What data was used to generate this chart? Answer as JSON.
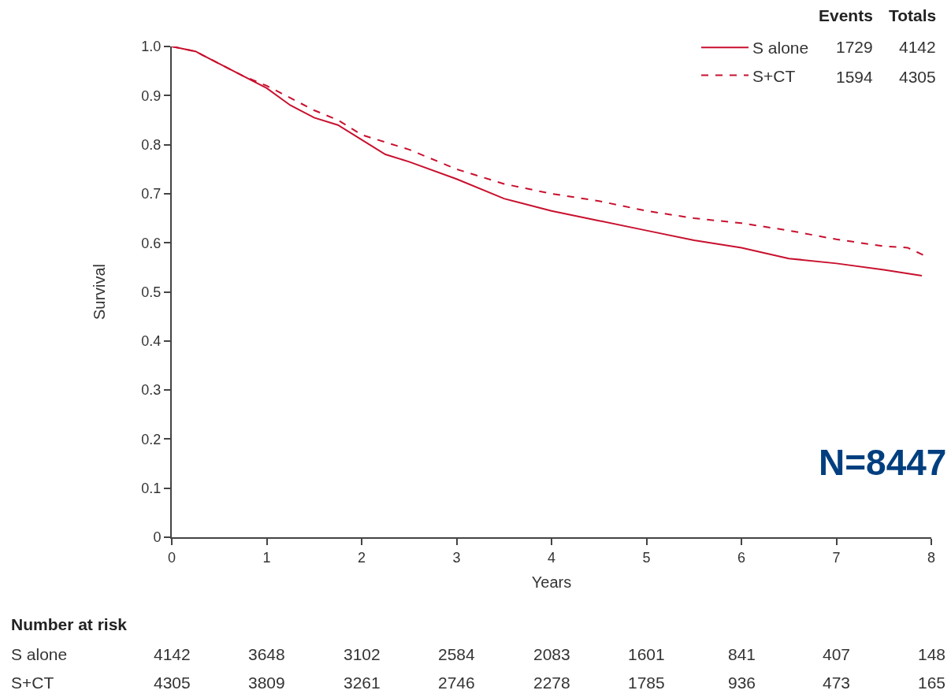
{
  "chart_data": {
    "type": "line",
    "xlabel": "Years",
    "ylabel": "Survival",
    "xlim": [
      0,
      8
    ],
    "xticks": [
      0,
      1,
      2,
      3,
      4,
      5,
      6,
      7,
      8
    ],
    "ylim": [
      0,
      1.0
    ],
    "yticks": [
      0,
      0.1,
      0.2,
      0.3,
      0.4,
      0.5,
      0.6,
      0.7,
      0.8,
      0.9,
      {
        "value": 1.0,
        "label": "1.0"
      }
    ],
    "legend": "top right",
    "marker": "none",
    "series": [
      {
        "name": "S alone",
        "color": "#c8102e",
        "line_style": "solid",
        "x": [
          0,
          0.25,
          0.5,
          0.75,
          1,
          1.25,
          1.5,
          1.75,
          2,
          2.25,
          2.5,
          3,
          3.5,
          4,
          4.5,
          5,
          5.5,
          6,
          6.5,
          7,
          7.5,
          7.9
        ],
        "values": [
          1.0,
          0.99,
          0.965,
          0.94,
          0.915,
          0.88,
          0.855,
          0.84,
          0.81,
          0.78,
          0.765,
          0.73,
          0.69,
          0.665,
          0.645,
          0.625,
          0.605,
          0.59,
          0.568,
          0.558,
          0.545,
          0.533
        ]
      },
      {
        "name": "S+CT",
        "color": "#c8102e",
        "line_style": "dashed",
        "x": [
          0,
          0.25,
          0.5,
          0.75,
          1,
          1.25,
          1.5,
          1.75,
          2,
          2.5,
          3,
          3.5,
          4,
          4.5,
          5,
          5.5,
          6,
          6.5,
          7,
          7.5,
          7.75,
          7.95
        ],
        "values": [
          1.0,
          0.99,
          0.965,
          0.94,
          0.92,
          0.895,
          0.87,
          0.85,
          0.82,
          0.79,
          0.75,
          0.72,
          0.7,
          0.685,
          0.665,
          0.65,
          0.64,
          0.625,
          0.607,
          0.593,
          0.59,
          0.572
        ]
      }
    ],
    "annotations": [
      "Events",
      "Totals",
      "1729",
      "4142",
      "1594",
      "4305",
      "N=8447",
      "Number at risk",
      "S alone",
      "4142",
      "3648",
      "3102",
      "2584",
      "2083",
      "1601",
      "841",
      "407",
      "148",
      "S+CT",
      "4305",
      "3809",
      "3261",
      "2746",
      "2278",
      "1785",
      "936",
      "473",
      "165"
    ]
  }
}
